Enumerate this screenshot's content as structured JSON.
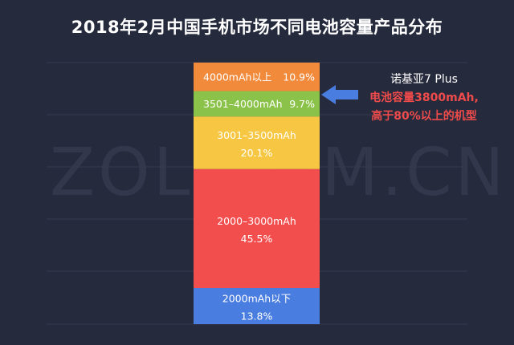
{
  "title": "2018年2月中国手机市场不同电池容量产品分布",
  "watermark": "ZOL.COM.CN",
  "annotation": {
    "model": "诺基亚7 Plus",
    "line1": "电池容量3800mAh,",
    "line2": "高于80%以上的机型",
    "text_color": "#f04b4b"
  },
  "chart_data": {
    "type": "bar",
    "stacked": true,
    "categories": [
      "2000mAh以下",
      "2000–3000mAh",
      "3001–3500mAh",
      "3501–4000mAh",
      "4000mAh以上"
    ],
    "values": [
      13.8,
      45.5,
      20.1,
      9.7,
      10.9
    ],
    "value_labels": [
      "13.8%",
      "45.5%",
      "20.1%",
      "9.7%",
      "10.9%"
    ],
    "colors": [
      "#4a7de0",
      "#f24e4e",
      "#f7c744",
      "#8bc34a",
      "#f28a3b"
    ],
    "label_layout": [
      "two-line",
      "two-line",
      "two-line",
      "inline",
      "inline"
    ],
    "highlighted_category": "3501–4000mAh",
    "ylim": [
      0,
      100
    ],
    "grid": true
  }
}
